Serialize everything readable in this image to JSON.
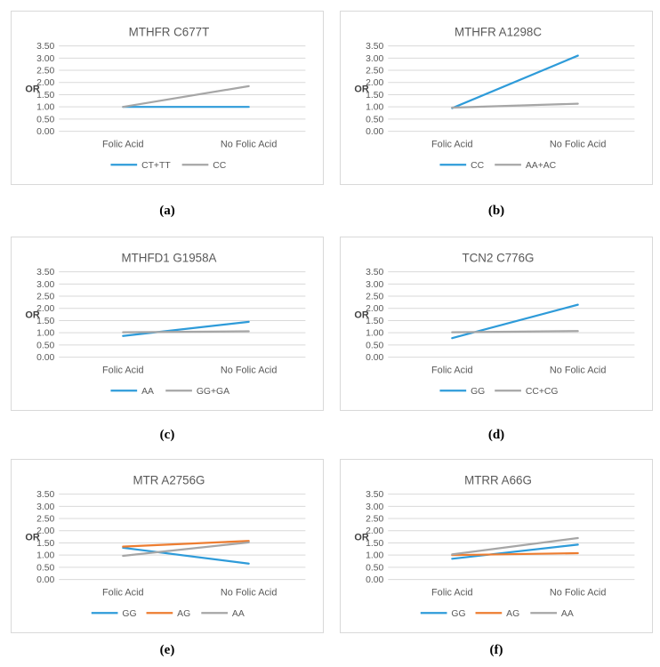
{
  "page": {
    "background": "#ffffff"
  },
  "palette": {
    "blue": "#2E9BD9",
    "orange": "#ED7D31",
    "gray": "#A6A6A6",
    "gridline": "#D9D9D9",
    "panel_border": "#D9D9D9",
    "title_text": "#595959",
    "tick_text": "#595959",
    "axis_label_text": "#404040",
    "caption_text": "#000000"
  },
  "chart_data": [
    {
      "type": "line",
      "caption": "(a)",
      "title": "MTHFR C677T",
      "ylabel": "OR",
      "xlabel": "",
      "ylim": [
        0,
        3.5
      ],
      "yticks": [
        "0.00",
        "0.50",
        "1.00",
        "1.50",
        "2.00",
        "2.50",
        "3.00",
        "3.50"
      ],
      "categories": [
        "Folic Acid",
        "No Folic Acid"
      ],
      "grid": true,
      "legend_position": "bottom",
      "series": [
        {
          "name": "CT+TT",
          "color_key": "blue",
          "values": [
            1.0,
            1.0
          ]
        },
        {
          "name": "CC",
          "color_key": "gray",
          "values": [
            1.0,
            1.85
          ]
        }
      ]
    },
    {
      "type": "line",
      "caption": "(b)",
      "title": "MTHFR A1298C",
      "ylabel": "OR",
      "xlabel": "",
      "ylim": [
        0,
        3.5
      ],
      "yticks": [
        "0.00",
        "0.50",
        "1.00",
        "1.50",
        "2.00",
        "2.50",
        "3.00",
        "3.50"
      ],
      "categories": [
        "Folic Acid",
        "No Folic Acid"
      ],
      "grid": true,
      "legend_position": "bottom",
      "series": [
        {
          "name": "CC",
          "color_key": "blue",
          "values": [
            0.95,
            3.1
          ]
        },
        {
          "name": "AA+AC",
          "color_key": "gray",
          "values": [
            0.97,
            1.13
          ]
        }
      ]
    },
    {
      "type": "line",
      "caption": "(c)",
      "title": "MTHFD1 G1958A",
      "ylabel": "OR",
      "xlabel": "",
      "ylim": [
        0,
        3.5
      ],
      "yticks": [
        "0.00",
        "0.50",
        "1.00",
        "1.50",
        "2.00",
        "2.50",
        "3.00",
        "3.50"
      ],
      "categories": [
        "Folic Acid",
        "No Folic Acid"
      ],
      "grid": true,
      "legend_position": "bottom",
      "series": [
        {
          "name": "AA",
          "color_key": "blue",
          "values": [
            0.87,
            1.45
          ]
        },
        {
          "name": "GG+GA",
          "color_key": "gray",
          "values": [
            1.02,
            1.06
          ]
        }
      ]
    },
    {
      "type": "line",
      "caption": "(d)",
      "title": "TCN2 C776G",
      "ylabel": "OR",
      "xlabel": "",
      "ylim": [
        0,
        3.5
      ],
      "yticks": [
        "0.00",
        "0.50",
        "1.00",
        "1.50",
        "2.00",
        "2.50",
        "3.00",
        "3.50"
      ],
      "categories": [
        "Folic Acid",
        "No Folic Acid"
      ],
      "grid": true,
      "legend_position": "bottom",
      "series": [
        {
          "name": "GG",
          "color_key": "blue",
          "values": [
            0.78,
            2.15
          ]
        },
        {
          "name": "CC+CG",
          "color_key": "gray",
          "values": [
            1.02,
            1.07
          ]
        }
      ]
    },
    {
      "type": "line",
      "caption": "(e)",
      "title": "MTR A2756G",
      "ylabel": "OR",
      "xlabel": "",
      "ylim": [
        0,
        3.5
      ],
      "yticks": [
        "0.00",
        "0.50",
        "1.00",
        "1.50",
        "2.00",
        "2.50",
        "3.00",
        "3.50"
      ],
      "categories": [
        "Folic Acid",
        "No Folic Acid"
      ],
      "grid": true,
      "legend_position": "bottom",
      "series": [
        {
          "name": "GG",
          "color_key": "blue",
          "values": [
            1.3,
            0.65
          ]
        },
        {
          "name": "AG",
          "color_key": "orange",
          "values": [
            1.35,
            1.58
          ]
        },
        {
          "name": "AA",
          "color_key": "gray",
          "values": [
            0.97,
            1.52
          ]
        }
      ]
    },
    {
      "type": "line",
      "caption": "(f)",
      "title": "MTRR A66G",
      "ylabel": "OR",
      "xlabel": "",
      "ylim": [
        0,
        3.5
      ],
      "yticks": [
        "0.00",
        "0.50",
        "1.00",
        "1.50",
        "2.00",
        "2.50",
        "3.00",
        "3.50"
      ],
      "categories": [
        "Folic Acid",
        "No Folic Acid"
      ],
      "grid": true,
      "legend_position": "bottom",
      "series": [
        {
          "name": "GG",
          "color_key": "blue",
          "values": [
            0.85,
            1.43
          ]
        },
        {
          "name": "AG",
          "color_key": "orange",
          "values": [
            1.0,
            1.08
          ]
        },
        {
          "name": "AA",
          "color_key": "gray",
          "values": [
            1.03,
            1.7
          ]
        }
      ]
    }
  ]
}
